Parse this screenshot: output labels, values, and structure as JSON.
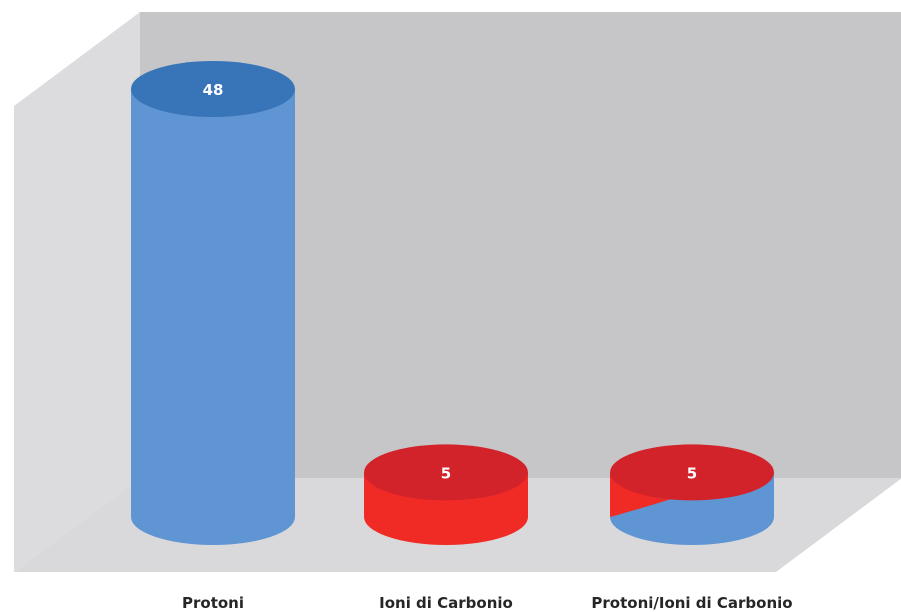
{
  "chart_data": {
    "type": "bar",
    "style": "3d-cylinder",
    "title": "",
    "xlabel": "",
    "ylabel": "",
    "categories": [
      "Protoni",
      "Ioni di Carbonio",
      "Protoni/Ioni di Carbonio"
    ],
    "values": [
      48,
      5,
      5
    ],
    "bar_colors": [
      {
        "side": "#5e95d2",
        "top": "#3874b8",
        "side2": null
      },
      {
        "side": "#f02b25",
        "top": "#d2232a",
        "side2": null
      },
      {
        "side": "#5e95d2",
        "top": "#d2232a",
        "side2": "#f02b25"
      }
    ],
    "grid": false,
    "legend": "none",
    "ylim": [
      0,
      48
    ]
  },
  "colors": {
    "back_wall": "#c6c6c8",
    "side_wall": "#dcdcde",
    "floor": "#d9d9db",
    "label_text": "#262626",
    "value_text": "#ffffff"
  }
}
